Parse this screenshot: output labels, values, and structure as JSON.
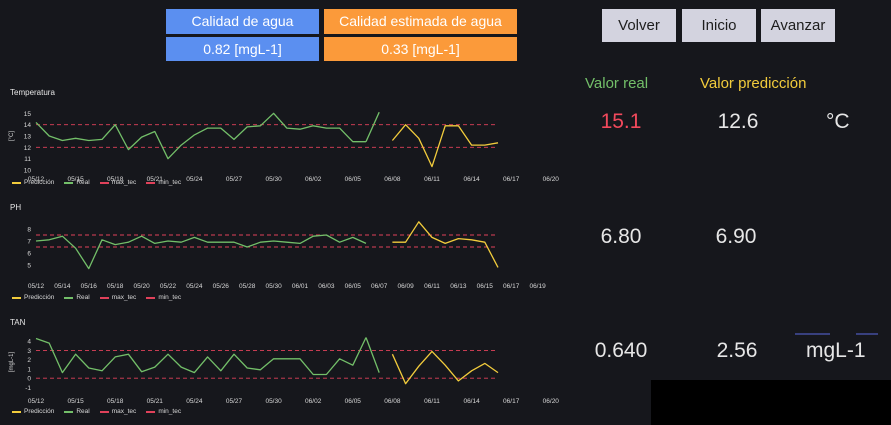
{
  "quality": {
    "actual_label": "Calidad de agua",
    "actual_value": "0.82 [mgL-1]",
    "estimated_label": "Calidad estimada de agua",
    "estimated_value": "0.33 [mgL-1]",
    "actual_color": "#5b8ff0",
    "estimated_color": "#fb9a3a"
  },
  "nav": {
    "back_label": "Volver",
    "home_label": "Inicio",
    "forward_label": "Avanzar"
  },
  "columns": {
    "real_header": "Valor real",
    "pred_header": "Valor predicción",
    "real_color": "#73bf69",
    "pred_color": "#f2cc3c"
  },
  "readings": [
    {
      "real": "15.1",
      "pred": "12.6",
      "unit": "°C",
      "real_color": "#f2495c"
    },
    {
      "real": "6.80",
      "pred": "6.90",
      "unit": ""
    },
    {
      "real": "0.640",
      "pred": "2.56",
      "unit": "mgL-1"
    }
  ],
  "legend": {
    "pred": "Predicción",
    "real": "Real",
    "max": "max_tec",
    "min": "min_tec",
    "max_color": "#e0415a",
    "min_color": "#e0415a"
  },
  "chart_data": [
    {
      "type": "line",
      "title": "Temperatura",
      "ylabel": "[°C]",
      "ylim": [
        10,
        16
      ],
      "yticks": [
        10,
        11,
        12,
        13,
        14,
        15
      ],
      "xlim": [
        0,
        40
      ],
      "xticks": [
        {
          "x": 0,
          "label": "05/12"
        },
        {
          "x": 3,
          "label": "05/15"
        },
        {
          "x": 6,
          "label": "05/18"
        },
        {
          "x": 9,
          "label": "05/21"
        },
        {
          "x": 12,
          "label": "05/24"
        },
        {
          "x": 15,
          "label": "05/27"
        },
        {
          "x": 18,
          "label": "05/30"
        },
        {
          "x": 21,
          "label": "06/02"
        },
        {
          "x": 24,
          "label": "06/05"
        },
        {
          "x": 27,
          "label": "06/08"
        },
        {
          "x": 30,
          "label": "06/11"
        },
        {
          "x": 33,
          "label": "06/14"
        },
        {
          "x": 36,
          "label": "06/17"
        },
        {
          "x": 39,
          "label": "06/20"
        }
      ],
      "max_tec": 14,
      "min_tec": 12,
      "series": [
        {
          "name": "Real",
          "color": "#73bf69",
          "x": [
            0,
            1,
            2,
            3,
            4,
            5,
            6,
            7,
            8,
            9,
            10,
            11,
            12,
            13,
            14,
            15,
            16,
            17,
            18,
            19,
            20,
            21,
            22,
            23,
            24,
            25
          ],
          "y": [
            14.2,
            13.0,
            12.6,
            12.8,
            12.6,
            12.7,
            14.0,
            11.8,
            12.9,
            13.4,
            11.0,
            12.2,
            13.1,
            13.7,
            13.7,
            12.7,
            13.8,
            13.9,
            15.0,
            13.7,
            13.6,
            13.9,
            13.7,
            13.7,
            12.5,
            12.5
          ]
        },
        {
          "name": "Real",
          "color": "#73bf69",
          "x": [
            25,
            26
          ],
          "y": [
            12.5,
            15.1
          ]
        },
        {
          "name": "Predicción",
          "color": "#f2cc3c",
          "x": [
            27,
            28,
            29,
            30,
            31,
            32,
            33,
            34,
            35
          ],
          "y": [
            12.6,
            14.0,
            12.8,
            10.3,
            13.9,
            13.9,
            12.2,
            12.2,
            12.4
          ]
        }
      ]
    },
    {
      "type": "line",
      "title": "PH",
      "ylabel": "",
      "ylim": [
        4,
        9
      ],
      "yticks": [
        5,
        6,
        7,
        8
      ],
      "xlim": [
        0,
        40
      ],
      "xticks": [
        {
          "x": 0,
          "label": "05/12"
        },
        {
          "x": 2,
          "label": "05/14"
        },
        {
          "x": 4,
          "label": "05/16"
        },
        {
          "x": 6,
          "label": "05/18"
        },
        {
          "x": 8,
          "label": "05/20"
        },
        {
          "x": 10,
          "label": "05/22"
        },
        {
          "x": 12,
          "label": "05/24"
        },
        {
          "x": 14,
          "label": "05/26"
        },
        {
          "x": 16,
          "label": "05/28"
        },
        {
          "x": 18,
          "label": "05/30"
        },
        {
          "x": 20,
          "label": "06/01"
        },
        {
          "x": 22,
          "label": "06/03"
        },
        {
          "x": 24,
          "label": "06/05"
        },
        {
          "x": 26,
          "label": "06/07"
        },
        {
          "x": 28,
          "label": "06/09"
        },
        {
          "x": 30,
          "label": "06/11"
        },
        {
          "x": 32,
          "label": "06/13"
        },
        {
          "x": 34,
          "label": "06/15"
        },
        {
          "x": 36,
          "label": "06/17"
        },
        {
          "x": 38,
          "label": "06/19"
        }
      ],
      "max_tec": 7.5,
      "min_tec": 6.5,
      "series": [
        {
          "name": "Real",
          "color": "#73bf69",
          "x": [
            0,
            1,
            2,
            3,
            4,
            5,
            6,
            7,
            8,
            9,
            10,
            11,
            12,
            13,
            14,
            15,
            16,
            17,
            18,
            19,
            20,
            21,
            22,
            23,
            24,
            25
          ],
          "y": [
            7.0,
            7.1,
            7.4,
            6.4,
            4.7,
            7.1,
            6.7,
            6.9,
            7.4,
            6.8,
            7.0,
            6.9,
            7.3,
            6.9,
            6.9,
            6.9,
            6.5,
            6.9,
            7.0,
            6.9,
            6.8,
            7.4,
            7.5,
            6.9,
            7.3,
            6.8
          ]
        },
        {
          "name": "Predicción",
          "color": "#f2cc3c",
          "x": [
            27,
            28,
            29,
            30,
            31,
            32,
            33,
            34,
            35
          ],
          "y": [
            6.9,
            6.9,
            8.6,
            7.3,
            6.8,
            7.2,
            7.1,
            6.9,
            4.8
          ]
        }
      ]
    },
    {
      "type": "line",
      "title": "TAN",
      "ylabel": "[mgL-1]",
      "ylim": [
        -1.5,
        5
      ],
      "yticks": [
        -1,
        0,
        1,
        2,
        3,
        4
      ],
      "xlim": [
        0,
        40
      ],
      "xticks": [
        {
          "x": 0,
          "label": "05/12"
        },
        {
          "x": 3,
          "label": "05/15"
        },
        {
          "x": 6,
          "label": "05/18"
        },
        {
          "x": 9,
          "label": "05/21"
        },
        {
          "x": 12,
          "label": "05/24"
        },
        {
          "x": 15,
          "label": "05/27"
        },
        {
          "x": 18,
          "label": "05/30"
        },
        {
          "x": 21,
          "label": "06/02"
        },
        {
          "x": 24,
          "label": "06/05"
        },
        {
          "x": 27,
          "label": "06/08"
        },
        {
          "x": 30,
          "label": "06/11"
        },
        {
          "x": 33,
          "label": "06/14"
        },
        {
          "x": 36,
          "label": "06/17"
        },
        {
          "x": 39,
          "label": "06/20"
        }
      ],
      "max_tec": 3,
      "min_tec": 0,
      "series": [
        {
          "name": "Real",
          "color": "#73bf69",
          "x": [
            0,
            1,
            2,
            3,
            4,
            5,
            6,
            7,
            8,
            9,
            10,
            11,
            12,
            13,
            14,
            15,
            16,
            17,
            18,
            19,
            20,
            21,
            22,
            23,
            24,
            25
          ],
          "y": [
            4.3,
            3.8,
            0.6,
            2.6,
            1.1,
            0.8,
            2.3,
            2.6,
            0.7,
            1.2,
            2.6,
            1.2,
            0.6,
            2.3,
            0.8,
            2.6,
            1.1,
            0.9,
            2.1,
            2.1,
            2.1,
            0.4,
            0.4,
            2.1,
            1.4,
            4.4
          ]
        },
        {
          "name": "Real",
          "color": "#73bf69",
          "x": [
            25,
            26
          ],
          "y": [
            4.4,
            0.6
          ]
        },
        {
          "name": "Predicción",
          "color": "#f2cc3c",
          "x": [
            27,
            28,
            29,
            30,
            31,
            32,
            33,
            34,
            35
          ],
          "y": [
            2.6,
            -0.6,
            1.3,
            2.9,
            1.4,
            -0.3,
            0.8,
            1.6,
            0.6
          ]
        }
      ]
    }
  ]
}
